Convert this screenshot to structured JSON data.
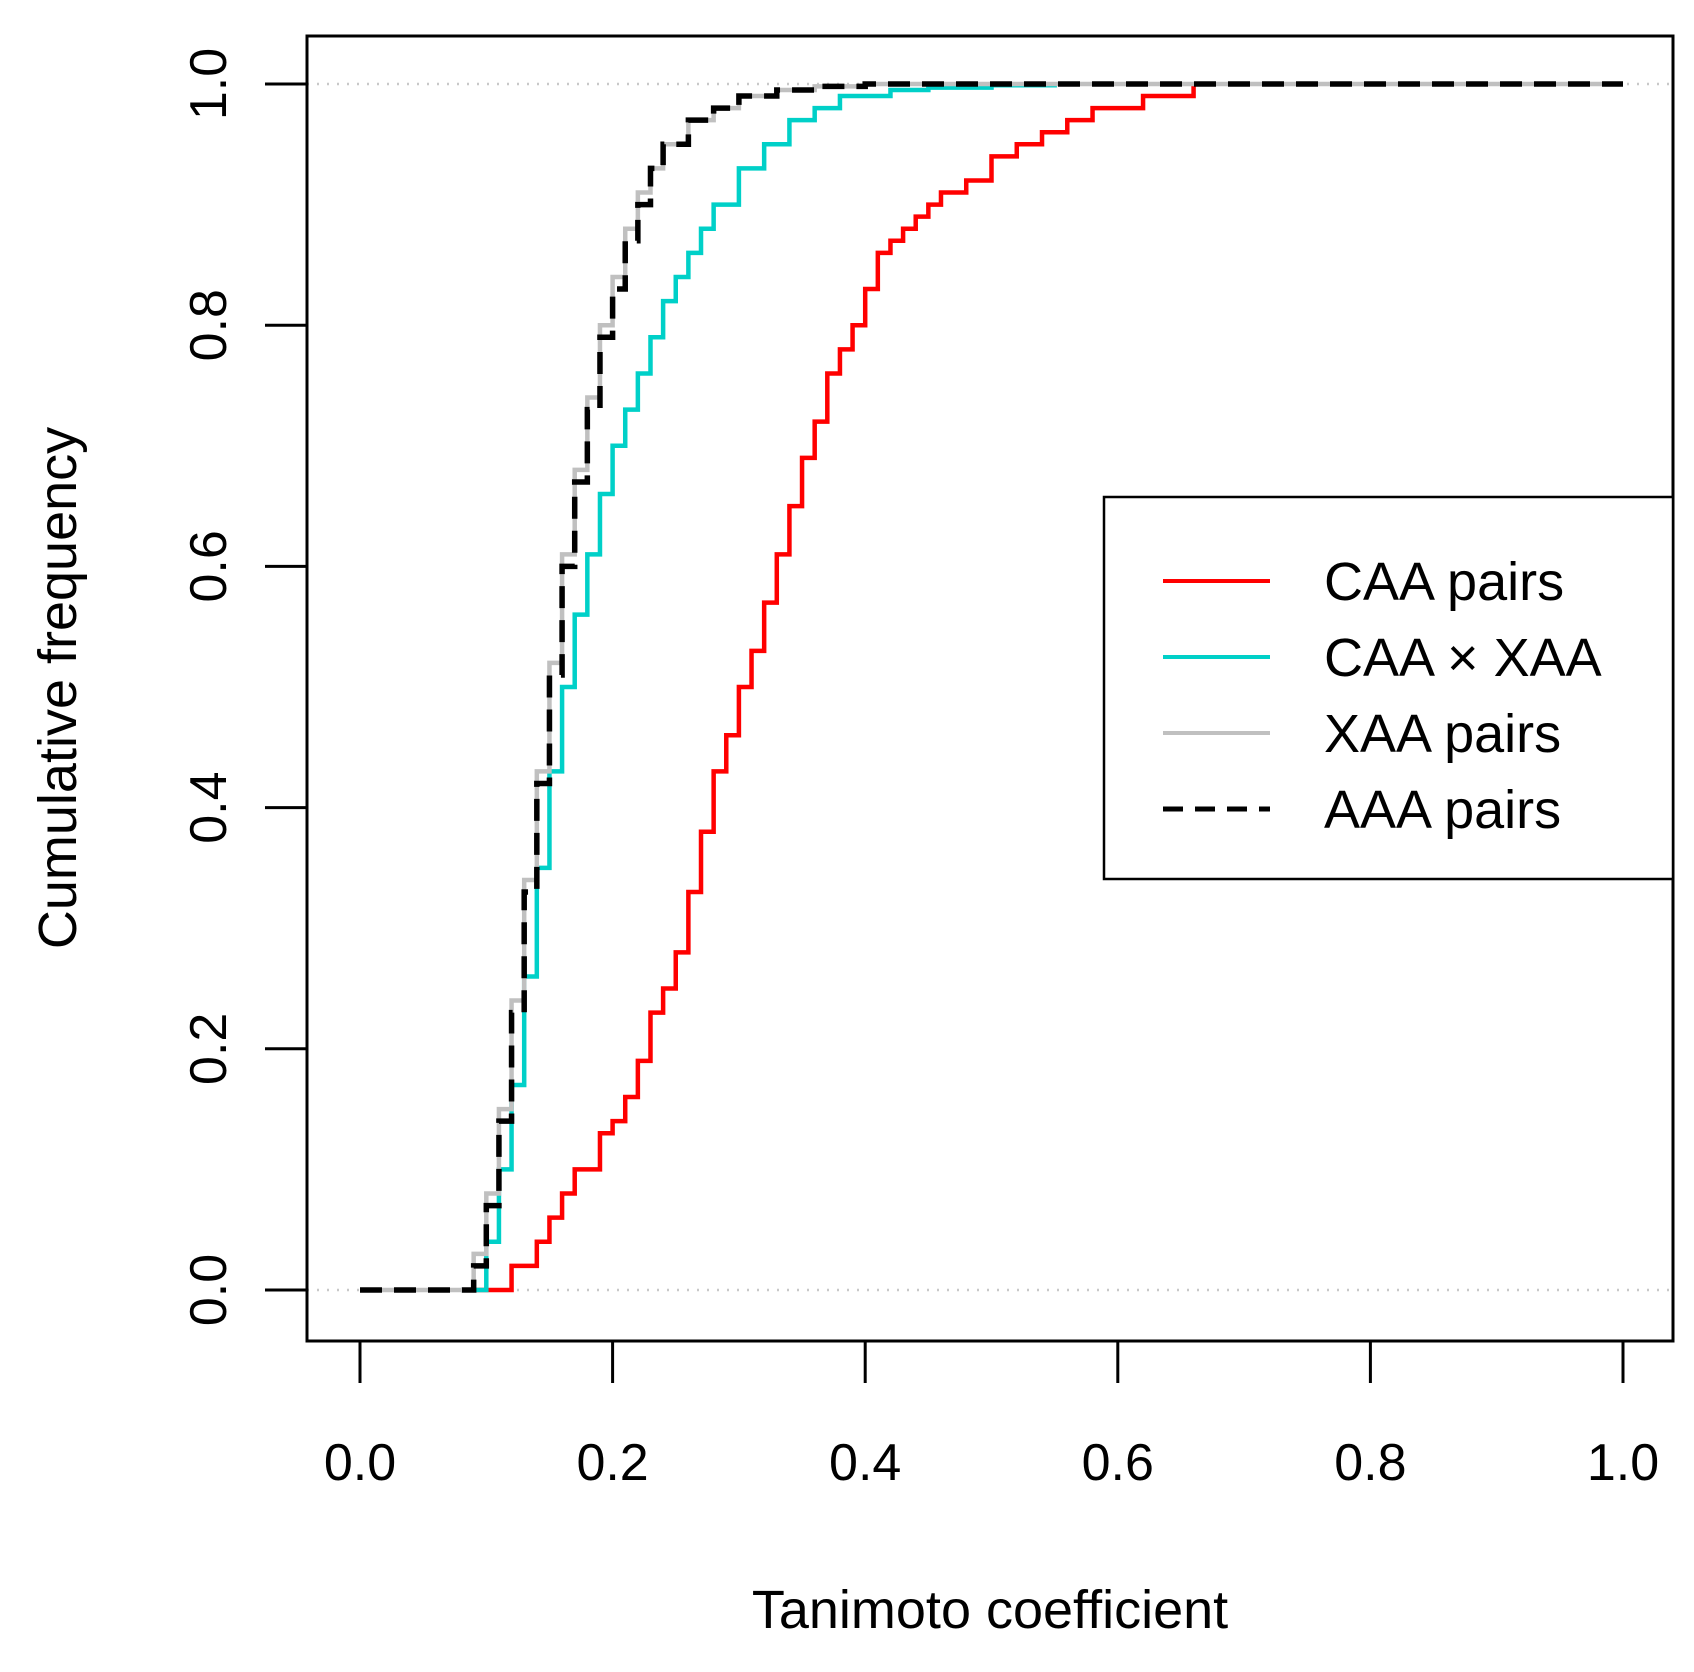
{
  "chart_data": {
    "type": "line",
    "subtype": "empirical cumulative distribution",
    "title": "",
    "xlabel": "Tanimoto coefficient",
    "ylabel": "Cumulative frequency",
    "xlim": [
      0.0,
      1.0
    ],
    "ylim": [
      0.0,
      1.0
    ],
    "x_ticks": [
      "0.0",
      "0.2",
      "0.4",
      "0.6",
      "0.8",
      "1.0"
    ],
    "y_ticks": [
      "0.0",
      "0.2",
      "0.4",
      "0.6",
      "0.8",
      "1.0"
    ],
    "reference_lines": [
      0.0,
      1.0
    ],
    "legend_position": "center-right",
    "series": [
      {
        "name": "CAA pairs",
        "color": "#ff0000",
        "dash": "solid",
        "x": [
          0.08,
          0.11,
          0.12,
          0.13,
          0.14,
          0.15,
          0.16,
          0.17,
          0.18,
          0.19,
          0.2,
          0.21,
          0.22,
          0.23,
          0.24,
          0.25,
          0.26,
          0.27,
          0.28,
          0.29,
          0.3,
          0.31,
          0.32,
          0.33,
          0.34,
          0.35,
          0.36,
          0.37,
          0.38,
          0.39,
          0.4,
          0.41,
          0.42,
          0.43,
          0.44,
          0.45,
          0.46,
          0.48,
          0.5,
          0.52,
          0.54,
          0.56,
          0.58,
          0.6,
          0.62,
          0.64,
          0.66
        ],
        "y": [
          0.0,
          0.0,
          0.02,
          0.02,
          0.04,
          0.06,
          0.08,
          0.1,
          0.1,
          0.13,
          0.14,
          0.16,
          0.19,
          0.23,
          0.25,
          0.28,
          0.33,
          0.38,
          0.43,
          0.46,
          0.5,
          0.53,
          0.57,
          0.61,
          0.65,
          0.69,
          0.72,
          0.76,
          0.78,
          0.8,
          0.83,
          0.86,
          0.87,
          0.88,
          0.89,
          0.9,
          0.91,
          0.92,
          0.94,
          0.95,
          0.96,
          0.97,
          0.98,
          0.98,
          0.99,
          0.99,
          1.0
        ],
        "drawn_to": 0.66
      },
      {
        "name": "CAA × XAA",
        "color": "#00d0c8",
        "dash": "solid",
        "x": [
          0.08,
          0.1,
          0.11,
          0.12,
          0.13,
          0.14,
          0.15,
          0.16,
          0.17,
          0.18,
          0.19,
          0.2,
          0.21,
          0.22,
          0.23,
          0.24,
          0.25,
          0.26,
          0.27,
          0.28,
          0.3,
          0.32,
          0.34,
          0.36,
          0.38,
          0.4,
          0.42,
          0.45,
          0.5,
          0.55
        ],
        "y": [
          0.0,
          0.04,
          0.1,
          0.17,
          0.26,
          0.35,
          0.43,
          0.5,
          0.56,
          0.61,
          0.66,
          0.7,
          0.73,
          0.76,
          0.79,
          0.82,
          0.84,
          0.86,
          0.88,
          0.9,
          0.93,
          0.95,
          0.97,
          0.98,
          0.99,
          0.99,
          0.995,
          0.997,
          0.999,
          1.0
        ],
        "drawn_to": 0.55
      },
      {
        "name": "XAA pairs",
        "color": "#c0c0c0",
        "dash": "solid",
        "x": [
          0.0,
          0.08,
          0.09,
          0.1,
          0.11,
          0.12,
          0.13,
          0.14,
          0.15,
          0.16,
          0.17,
          0.18,
          0.19,
          0.2,
          0.21,
          0.22,
          0.23,
          0.24,
          0.26,
          0.28,
          0.3,
          0.33,
          0.36,
          0.4,
          0.45,
          0.5
        ],
        "y": [
          0.0,
          0.0,
          0.03,
          0.08,
          0.15,
          0.24,
          0.34,
          0.43,
          0.52,
          0.61,
          0.68,
          0.74,
          0.8,
          0.84,
          0.88,
          0.91,
          0.93,
          0.95,
          0.97,
          0.98,
          0.99,
          0.995,
          0.998,
          1.0,
          1.0,
          1.0
        ],
        "drawn_to": 1.0
      },
      {
        "name": "AAA pairs",
        "color": "#000000",
        "dash": "dashed",
        "x": [
          0.0,
          0.08,
          0.09,
          0.1,
          0.11,
          0.12,
          0.13,
          0.14,
          0.15,
          0.16,
          0.17,
          0.18,
          0.19,
          0.2,
          0.21,
          0.22,
          0.23,
          0.24,
          0.26,
          0.28,
          0.3,
          0.33,
          0.36,
          0.4,
          0.45,
          0.5
        ],
        "y": [
          0.0,
          0.0,
          0.02,
          0.07,
          0.14,
          0.23,
          0.33,
          0.42,
          0.51,
          0.6,
          0.67,
          0.73,
          0.79,
          0.83,
          0.87,
          0.9,
          0.93,
          0.95,
          0.97,
          0.98,
          0.99,
          0.995,
          0.998,
          1.0,
          1.0,
          1.0
        ],
        "drawn_to": 1.0
      }
    ]
  }
}
